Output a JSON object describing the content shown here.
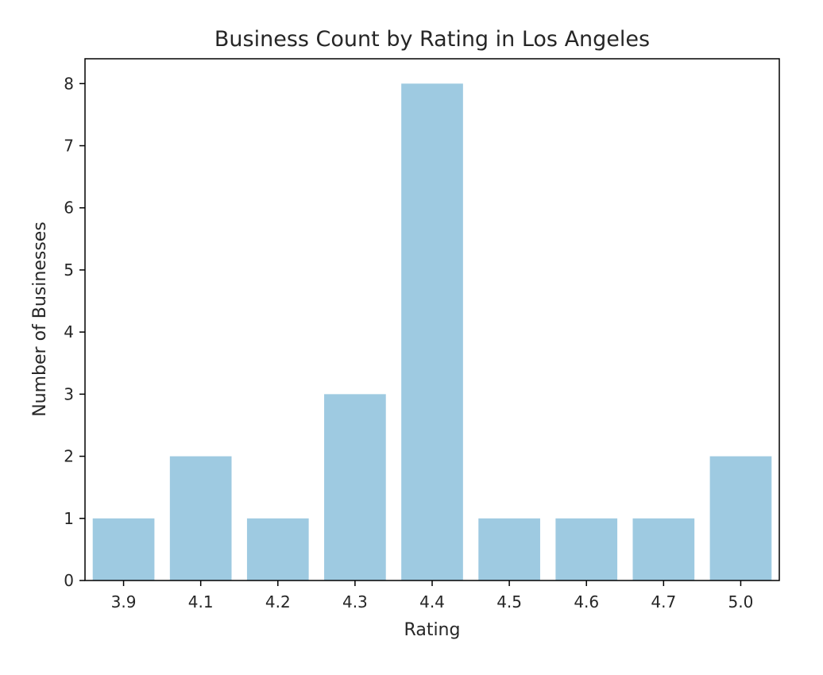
{
  "chart_data": {
    "type": "bar",
    "title": "Business Count by Rating in Los Angeles",
    "xlabel": "Rating",
    "ylabel": "Number of Businesses",
    "categories": [
      "3.9",
      "4.1",
      "4.2",
      "4.3",
      "4.4",
      "4.5",
      "4.6",
      "4.7",
      "5.0"
    ],
    "values": [
      1,
      2,
      1,
      3,
      8,
      1,
      1,
      1,
      2
    ],
    "ylim": [
      0,
      8.4
    ],
    "yticks": [
      "0",
      "1",
      "2",
      "3",
      "4",
      "5",
      "6",
      "7",
      "8"
    ],
    "grid": false,
    "legend": "none",
    "colors": {
      "bar": "#9ecae1",
      "axis": "#000000",
      "text": "#262626"
    }
  }
}
